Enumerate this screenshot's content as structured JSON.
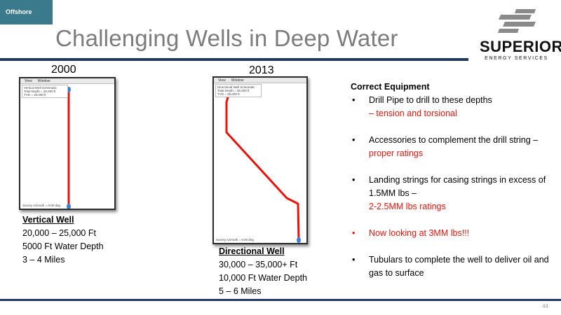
{
  "section_tag": "Offshore",
  "title": "Challenging Wells in Deep Water",
  "logo": {
    "name": "SUPERIOR",
    "subtitle": "ENERGY SERVICES"
  },
  "page_number": "44",
  "wells": [
    {
      "year": "2000",
      "menu": [
        "View",
        "Window"
      ],
      "legend": [
        "Vertical Well Schematic",
        "Total Depth = 25,000 ft",
        "TVD = 25,000 ft"
      ],
      "footer": "Survey Azimuth = 0.00 deg",
      "caption_title": "Vertical Well",
      "lines": [
        "20,000 – 25,000 Ft",
        "5000 Ft Water Depth",
        "3 – 4 Miles"
      ]
    },
    {
      "year": "2013",
      "menu": [
        "View",
        "Window"
      ],
      "legend": [
        "Directional Well Schematic",
        "Total Depth = 35,000 ft",
        "TVD = 30,000 ft"
      ],
      "footer": "Survey Azimuth = 0.00 deg",
      "caption_title": "Directional Well",
      "lines": [
        "30,000 – 35,000+ Ft",
        "10,000 Ft Water Depth",
        "5 – 6 Miles"
      ]
    }
  ],
  "equipment": {
    "heading": "Correct Equipment",
    "bullets": [
      {
        "text": "Drill Pipe to drill to these depths",
        "red_suffix": "– tension and torsional"
      },
      {
        "text": "Accessories to complement the drill string –",
        "red_suffix": "proper ratings"
      },
      {
        "text": "Landing strings for casing strings in excess of 1.5MM lbs –",
        "red_suffix": "2-2.5MM lbs ratings"
      },
      {
        "text": "Now looking at 3MM lbs!!!",
        "all_red": true
      },
      {
        "text": "Tubulars to complete the well to deliver oil and gas to surface"
      }
    ]
  },
  "colors": {
    "accent_tag": "#3a7a8c",
    "rule": "#1f3864",
    "well_path": "#e8140c",
    "marker": "#3d7fd6",
    "highlight": "#e8140c"
  },
  "icons": {
    "bullet": "bullet-dot",
    "well_top_marker": "blue-droplet"
  }
}
